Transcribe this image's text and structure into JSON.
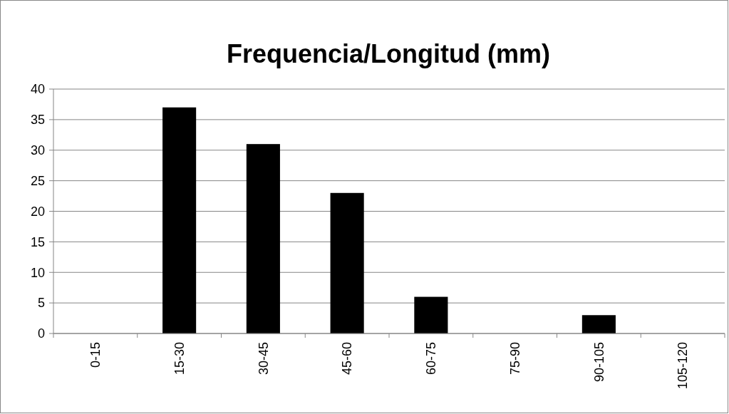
{
  "chart_data": {
    "type": "bar",
    "title": "Frequencia/Longitud (mm)",
    "categories": [
      "0-15",
      "15-30",
      "30-45",
      "45-60",
      "60-75",
      "75-90",
      "90-105",
      "105-120"
    ],
    "values": [
      0,
      37,
      31,
      23,
      6,
      0,
      3,
      0
    ],
    "color": "#000000",
    "ylim": [
      0,
      40
    ],
    "yticks": [
      0,
      5,
      10,
      15,
      20,
      25,
      30,
      35,
      40
    ],
    "grid": "y"
  }
}
